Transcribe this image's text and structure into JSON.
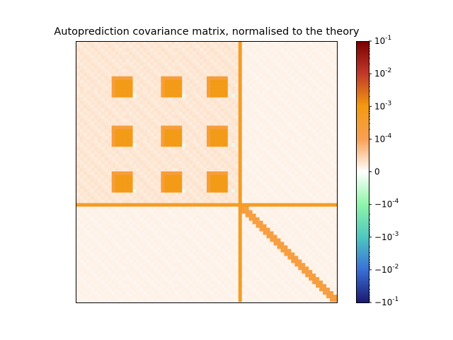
{
  "chart_data": {
    "type": "heatmap",
    "title": "Autoprediction covariance matrix, normalised to the theory",
    "xlabel": "",
    "ylabel": "",
    "x_ticks_shown": false,
    "y_ticks_shown": false,
    "matrix_size": 74,
    "colorbar": {
      "scale": "symlog",
      "range": [
        -0.1,
        0.1
      ],
      "colormap_stops": [
        {
          "v": -0.1,
          "color": "#1a1a6e"
        },
        {
          "v": -0.01,
          "color": "#3a6fd8"
        },
        {
          "v": -0.001,
          "color": "#4fc7c0"
        },
        {
          "v": -0.0001,
          "color": "#8ef5a8"
        },
        {
          "v": 0,
          "color": "#ffffff"
        },
        {
          "v": 0.0001,
          "color": "#f8a055"
        },
        {
          "v": 0.001,
          "color": "#f39a10"
        },
        {
          "v": 0.01,
          "color": "#c0392b"
        },
        {
          "v": 0.1,
          "color": "#7a0000"
        }
      ],
      "ticks": [
        {
          "value": 0.1,
          "label": "10^{-1}"
        },
        {
          "value": 0.01,
          "label": "10^{-2}"
        },
        {
          "value": 0.001,
          "label": "10^{-3}"
        },
        {
          "value": 0.0001,
          "label": "10^{-4}"
        },
        {
          "value": 0,
          "label": "0"
        },
        {
          "value": -0.0001,
          "label": "−10^{-4}"
        },
        {
          "value": -0.001,
          "label": "−10^{-3}"
        },
        {
          "value": -0.01,
          "label": "−10^{-2}"
        },
        {
          "value": -0.1,
          "label": "−10^{-1}"
        }
      ]
    },
    "structure": {
      "row_blocks": [
        {
          "start": 0,
          "end": 14
        },
        {
          "start": 14,
          "end": 28
        },
        {
          "start": 28,
          "end": 46
        },
        {
          "start": 46,
          "end": 74
        }
      ],
      "col_blocks": [
        {
          "start": 0,
          "end": 14
        },
        {
          "start": 14,
          "end": 28
        },
        {
          "start": 28,
          "end": 46
        },
        {
          "start": 46,
          "end": 74
        }
      ],
      "hot_squares": [
        {
          "row": [
            11,
            16
          ],
          "col": [
            11,
            16
          ],
          "value": 0.0008
        },
        {
          "row": [
            11,
            16
          ],
          "col": [
            25,
            30
          ],
          "value": 0.0008
        },
        {
          "row": [
            11,
            16
          ],
          "col": [
            38,
            43
          ],
          "value": 0.0008
        },
        {
          "row": [
            25,
            30
          ],
          "col": [
            11,
            16
          ],
          "value": 0.0008
        },
        {
          "row": [
            25,
            30
          ],
          "col": [
            25,
            30
          ],
          "value": 0.0008
        },
        {
          "row": [
            25,
            30
          ],
          "col": [
            38,
            43
          ],
          "value": 0.0008
        },
        {
          "row": [
            38,
            43
          ],
          "col": [
            11,
            16
          ],
          "value": 0.0008
        },
        {
          "row": [
            38,
            43
          ],
          "col": [
            25,
            30
          ],
          "value": 0.0008
        },
        {
          "row": [
            38,
            43
          ],
          "col": [
            38,
            43
          ],
          "value": 0.0008
        }
      ],
      "background_value": 2e-05,
      "diagonal_peak": 0.0005
    }
  }
}
